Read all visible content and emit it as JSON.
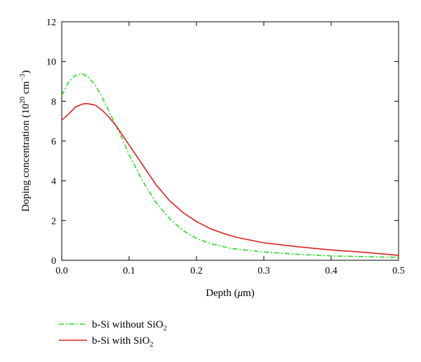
{
  "chart_data": {
    "type": "line",
    "xlabel": "Depth (μm)",
    "ylabel": "Doping concentration (10^20 cm^-3)",
    "xlim": [
      0.0,
      0.5
    ],
    "ylim": [
      0,
      12
    ],
    "x_ticks": [
      0.0,
      0.1,
      0.2,
      0.3,
      0.4,
      0.5
    ],
    "x_tick_labels": [
      "0.0",
      "0.1",
      "0.2",
      "0.3",
      "0.4",
      "0.5"
    ],
    "y_ticks": [
      0,
      2,
      4,
      6,
      8,
      10,
      12
    ],
    "y_tick_labels": [
      "0",
      "2",
      "4",
      "6",
      "8",
      "10",
      "12"
    ],
    "grid": false,
    "legend_position": "bottom-left, below plot",
    "series": [
      {
        "name": "b-Si without SiO2",
        "color": "#22dd22",
        "line_style": "dash-dot",
        "x": [
          0.0,
          0.01,
          0.02,
          0.03,
          0.04,
          0.05,
          0.06,
          0.07,
          0.08,
          0.09,
          0.1,
          0.12,
          0.14,
          0.16,
          0.18,
          0.2,
          0.22,
          0.25,
          0.3,
          0.35,
          0.4,
          0.45,
          0.5
        ],
        "y": [
          8.3,
          8.95,
          9.3,
          9.4,
          9.2,
          8.8,
          8.2,
          7.5,
          6.8,
          6.1,
          5.3,
          4.0,
          2.9,
          2.1,
          1.5,
          1.1,
          0.85,
          0.6,
          0.42,
          0.3,
          0.22,
          0.18,
          0.15
        ]
      },
      {
        "name": "b-Si with SiO2",
        "color": "#dd2020",
        "line_style": "solid",
        "x": [
          0.0,
          0.01,
          0.02,
          0.03,
          0.035,
          0.04,
          0.05,
          0.06,
          0.07,
          0.08,
          0.09,
          0.1,
          0.12,
          0.14,
          0.16,
          0.18,
          0.2,
          0.22,
          0.24,
          0.26,
          0.3,
          0.35,
          0.4,
          0.45,
          0.5
        ],
        "y": [
          7.05,
          7.35,
          7.7,
          7.85,
          7.88,
          7.87,
          7.8,
          7.55,
          7.2,
          6.8,
          6.3,
          5.8,
          4.8,
          3.8,
          3.0,
          2.4,
          1.95,
          1.6,
          1.35,
          1.15,
          0.88,
          0.68,
          0.52,
          0.4,
          0.25
        ]
      }
    ]
  },
  "labels": {
    "xlabel_prefix": "Depth (",
    "xlabel_mu": "μ",
    "xlabel_suffix": "m)",
    "ylabel_prefix": "Doping concentration (10",
    "ylabel_exp1": "20",
    "ylabel_mid": " cm",
    "ylabel_exp2": "−3",
    "ylabel_suffix": ")"
  },
  "legend": [
    {
      "text": "b-Si without SiO",
      "sub": "2"
    },
    {
      "text": "b-Si with SiO",
      "sub": "2"
    }
  ]
}
